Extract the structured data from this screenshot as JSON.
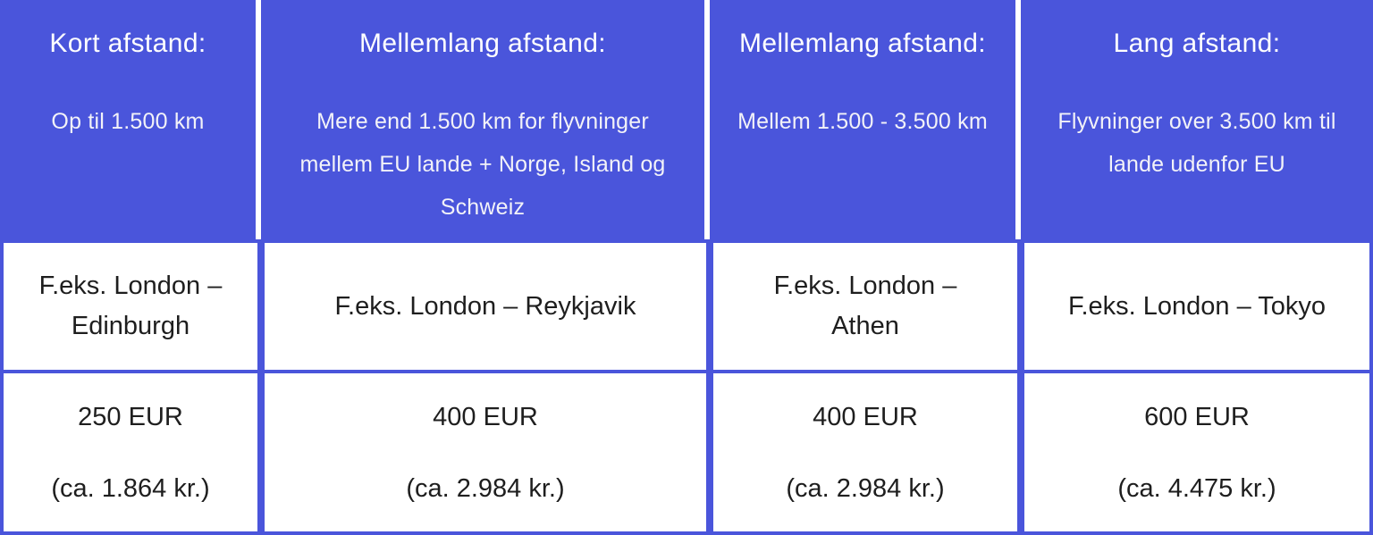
{
  "colors": {
    "accent_blue": "#4A55DB",
    "cell_background": "#FFFFFF",
    "header_text": "#FFFFFF",
    "body_text": "#1E1E1E"
  },
  "table": {
    "columns": [
      {
        "id": "short-distance",
        "header": {
          "title": "Kort afstand:",
          "subtitle": "Op til 1.500 km"
        },
        "example": "F.eks. London –\nEdinburgh",
        "amount_eur": "250 EUR",
        "amount_dkk": "(ca. 1.864 kr.)"
      },
      {
        "id": "medium-distance-eu",
        "header": {
          "title": "Mellemlang afstand:",
          "subtitle": "Mere end 1.500 km for flyvninger\nmellem EU lande + Norge, Island og\nSchweiz"
        },
        "example": "F.eks. London – Reykjavik",
        "amount_eur": "400 EUR",
        "amount_dkk": "(ca. 2.984 kr.)"
      },
      {
        "id": "medium-distance",
        "header": {
          "title": "Mellemlang afstand:",
          "subtitle": "Mellem 1.500 - 3.500 km"
        },
        "example": "F.eks. London –\nAthen",
        "amount_eur": "400 EUR",
        "amount_dkk": "(ca. 2.984 kr.)"
      },
      {
        "id": "long-distance",
        "header": {
          "title": "Lang afstand:",
          "subtitle": "Flyvninger over 3.500 km til\nlande udenfor EU"
        },
        "example": "F.eks. London – Tokyo",
        "amount_eur": "600 EUR",
        "amount_dkk": "(ca. 4.475 kr.)"
      }
    ]
  },
  "chart_data": {
    "type": "table",
    "columns": [
      "Kort afstand: Op til 1.500 km",
      "Mellemlang afstand: Mere end 1.500 km for flyvninger mellem EU lande + Norge, Island og Schweiz",
      "Mellemlang afstand: Mellem 1.500 - 3.500 km",
      "Lang afstand: Flyvninger over 3.500 km til lande udenfor EU"
    ],
    "rows": [
      [
        "F.eks. London – Edinburgh",
        "F.eks. London – Reykjavik",
        "F.eks. London – Athen",
        "F.eks. London – Tokyo"
      ],
      [
        "250 EUR (ca. 1.864 kr.)",
        "400 EUR (ca. 2.984 kr.)",
        "400 EUR (ca. 2.984 kr.)",
        "600 EUR (ca. 4.475 kr.)"
      ]
    ]
  }
}
